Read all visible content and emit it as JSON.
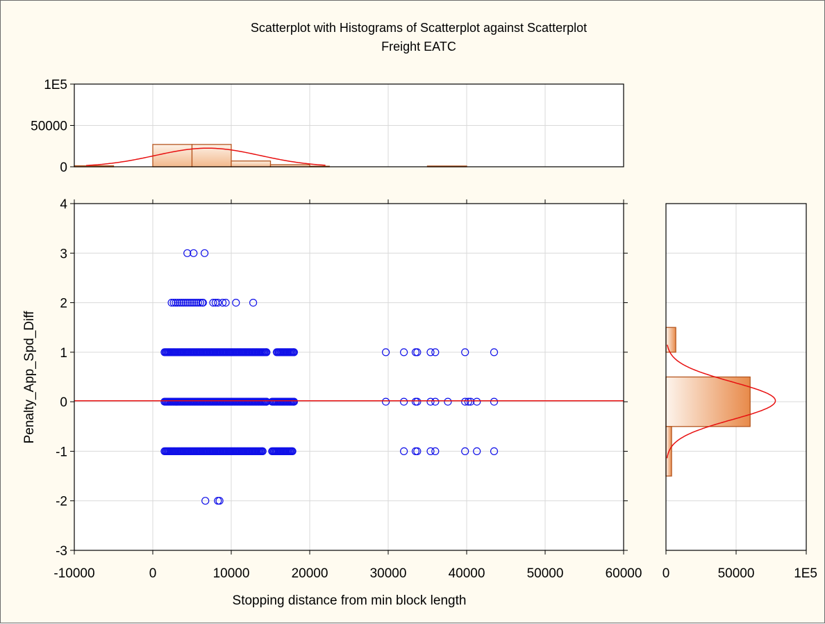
{
  "chart_data": {
    "type": "scatter",
    "title": "Scatterplot with Histograms of Scatterplot against Scatterplot",
    "subtitle": "Freight EATC",
    "xlabel": "Stopping distance from min block length",
    "ylabel": "Penalty_App_Spd_Diff",
    "xlim": [
      -10000,
      60000
    ],
    "ylim": [
      -3,
      4
    ],
    "x_tick_labels": [
      "-10000",
      "0",
      "10000",
      "20000",
      "30000",
      "40000",
      "50000",
      "60000"
    ],
    "y_tick_labels": [
      "-3",
      "-2",
      "-1",
      "0",
      "1",
      "2",
      "3",
      "4"
    ],
    "grid": true,
    "fit_line": {
      "type": "linear",
      "intercept": 0.02,
      "slope": 0
    },
    "points": {
      "dense_ranges": [
        {
          "y": 1,
          "x_from": 1500,
          "x_to": 14500
        },
        {
          "y": 1,
          "x_from": 15800,
          "x_to": 18000
        },
        {
          "y": 0,
          "x_from": 1500,
          "x_to": 14500
        },
        {
          "y": 0,
          "x_from": 15200,
          "x_to": 18000
        },
        {
          "y": -1,
          "x_from": 1500,
          "x_to": 14000
        },
        {
          "y": -1,
          "x_from": 15200,
          "x_to": 17800
        },
        {
          "y": 2,
          "x_from": 2400,
          "x_to": 6400
        }
      ],
      "individual": [
        [
          4400,
          3
        ],
        [
          5200,
          3
        ],
        [
          6600,
          3
        ],
        [
          7700,
          2
        ],
        [
          8000,
          2
        ],
        [
          8300,
          2
        ],
        [
          8900,
          2
        ],
        [
          9300,
          2
        ],
        [
          10600,
          2
        ],
        [
          12800,
          2
        ],
        [
          6700,
          -2
        ],
        [
          8300,
          -2
        ],
        [
          8500,
          -2
        ],
        [
          29700,
          1
        ],
        [
          32000,
          1
        ],
        [
          33500,
          1
        ],
        [
          33700,
          1
        ],
        [
          35400,
          1
        ],
        [
          36000,
          1
        ],
        [
          39800,
          1
        ],
        [
          43500,
          1
        ],
        [
          29700,
          0
        ],
        [
          32000,
          0
        ],
        [
          33500,
          0
        ],
        [
          33700,
          0
        ],
        [
          35400,
          0
        ],
        [
          36000,
          0
        ],
        [
          37600,
          0
        ],
        [
          39800,
          0
        ],
        [
          40200,
          0
        ],
        [
          40500,
          0
        ],
        [
          41300,
          0
        ],
        [
          43500,
          0
        ],
        [
          32000,
          -1
        ],
        [
          33500,
          -1
        ],
        [
          33700,
          -1
        ],
        [
          35400,
          -1
        ],
        [
          36000,
          -1
        ],
        [
          39800,
          -1
        ],
        [
          41300,
          -1
        ],
        [
          43500,
          -1
        ]
      ]
    },
    "x_histogram": {
      "tick_labels": [
        "0",
        "50000",
        "1E5"
      ],
      "ylim": [
        0,
        100000
      ],
      "bins": [
        {
          "from": -10000,
          "to": -5000,
          "count": 1200
        },
        {
          "from": 0,
          "to": 5000,
          "count": 27000
        },
        {
          "from": 5000,
          "to": 10000,
          "count": 27000
        },
        {
          "from": 10000,
          "to": 15000,
          "count": 7000
        },
        {
          "from": 15000,
          "to": 20000,
          "count": 2500
        },
        {
          "from": 20000,
          "to": 22500,
          "count": 700
        },
        {
          "from": 35000,
          "to": 40000,
          "count": 900
        }
      ],
      "normal_fit": {
        "mean": 7000,
        "sd": 6700,
        "peak": 22500
      }
    },
    "y_histogram": {
      "tick_labels": [
        "0",
        "50000",
        "1E5"
      ],
      "xlim": [
        0,
        100000
      ],
      "bins": [
        {
          "from": 1,
          "to": 1.5,
          "count": 7000
        },
        {
          "from": -0.5,
          "to": 0.5,
          "count": 60000
        },
        {
          "from": -1.5,
          "to": -0.5,
          "count": 4000
        }
      ],
      "normal_fit": {
        "mean": 0.02,
        "sd": 0.38,
        "peak": 78000
      }
    },
    "colors": {
      "points": "#1010e8",
      "fit": "#e81010",
      "bar_edge": "#b5561f",
      "bar_fill_light": "#fdf1e6",
      "bar_fill_dark": "#e88a4a",
      "grid": "#d9d9d9",
      "plot_bg": "#ffffff",
      "frame_bg": "#fffbf0"
    }
  }
}
